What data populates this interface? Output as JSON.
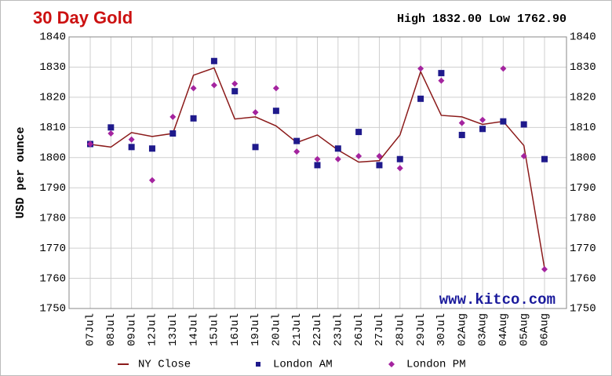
{
  "chart_data": {
    "type": "line",
    "title": "30 Day Gold",
    "stats": "High 1832.00 Low 1762.90",
    "y_label": "USD per ounce",
    "watermark": "www.kitco.com",
    "categories": [
      "07Jul",
      "08Jul",
      "09Jul",
      "12Jul",
      "13Jul",
      "14Jul",
      "15Jul",
      "16Jul",
      "19Jul",
      "20Jul",
      "21Jul",
      "22Jul",
      "23Jul",
      "26Jul",
      "27Jul",
      "28Jul",
      "29Jul",
      "30Jul",
      "02Aug",
      "03Aug",
      "04Aug",
      "05Aug",
      "06Aug"
    ],
    "series": [
      {
        "name": "NY Close",
        "color": "#8b1a1a",
        "marker": "line",
        "values": [
          1804.4,
          1803.5,
          1808.3,
          1807,
          1808,
          1827.3,
          1829.7,
          1812.8,
          1813.5,
          1810.5,
          1805,
          1807.5,
          1802.5,
          1798.5,
          1799,
          1807.5,
          1828.5,
          1814,
          1813.5,
          1811,
          1812,
          1804,
          1763.3
        ]
      },
      {
        "name": "London AM",
        "color": "#1f1a8c",
        "marker": "square",
        "values": [
          1804.5,
          1810,
          1803.5,
          1803,
          1808,
          1813,
          1832,
          1822,
          1803.5,
          1815.5,
          1805.5,
          1797.5,
          1803,
          1808.5,
          1797.5,
          1799.5,
          1819.5,
          1828,
          1807.5,
          1809.5,
          1812,
          1811,
          1799.5
        ]
      },
      {
        "name": "London PM",
        "color": "#a4249f",
        "marker": "diamond",
        "values": [
          1804.5,
          1808,
          1806,
          1792.5,
          1813.5,
          1823,
          1824,
          1824.5,
          1815,
          1823,
          1802,
          1799.5,
          1799.5,
          1800.5,
          1800.5,
          1796.5,
          1829.5,
          1825.5,
          1811.5,
          1812.5,
          1829.5,
          1800.5,
          1763
        ]
      }
    ],
    "ylim": [
      1750,
      1840
    ],
    "yticks": [
      1750,
      1760,
      1770,
      1780,
      1790,
      1800,
      1810,
      1820,
      1830,
      1840
    ],
    "grid": true
  }
}
